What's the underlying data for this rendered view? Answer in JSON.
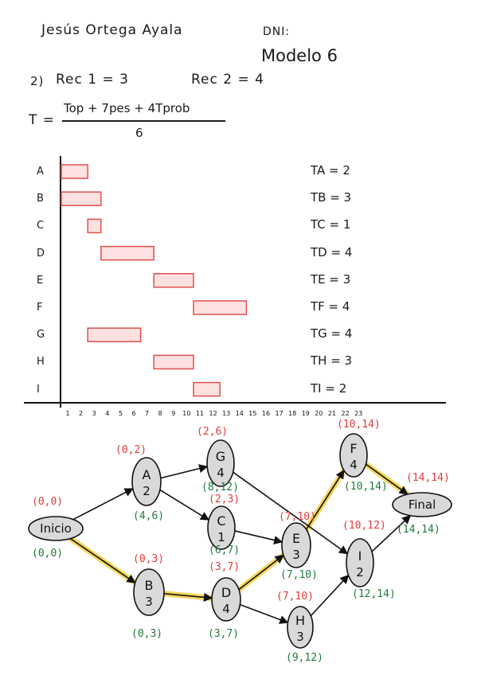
{
  "header": {
    "name": "Jesús Ortega Ayala",
    "dni_label": "DNI:",
    "modelo": "Modelo 6",
    "resources": {
      "label_number": "2)",
      "rec1": "Rec 1 = 3",
      "rec2": "Rec 2 = 4"
    }
  },
  "formula": {
    "lhs": "T =",
    "numerator": "Top + 7pes + 4Tprob",
    "denominator": "6"
  },
  "gantt": {
    "axis_labels": [
      "1",
      "2",
      "3",
      "4",
      "5",
      "6",
      "7",
      "8",
      "9",
      "10",
      "11",
      "12",
      "13",
      "14",
      "15",
      "16",
      "17",
      "18",
      "19",
      "20",
      "21",
      "22",
      "23"
    ],
    "tasks": [
      {
        "label": "A",
        "start": 0,
        "end": 2,
        "duration_text": "TA = 2"
      },
      {
        "label": "B",
        "start": 0,
        "end": 3,
        "duration_text": "TB = 3"
      },
      {
        "label": "C",
        "start": 2,
        "end": 3,
        "duration_text": "TC = 1"
      },
      {
        "label": "D",
        "start": 3,
        "end": 7,
        "duration_text": "TD = 4"
      },
      {
        "label": "E",
        "start": 7,
        "end": 10,
        "duration_text": "TE = 3"
      },
      {
        "label": "F",
        "start": 10,
        "end": 14,
        "duration_text": "TF = 4"
      },
      {
        "label": "G",
        "start": 2,
        "end": 6,
        "duration_text": "TG = 4"
      },
      {
        "label": "H",
        "start": 7,
        "end": 10,
        "duration_text": "TH = 3"
      },
      {
        "label": "I",
        "start": 10,
        "end": 12,
        "duration_text": "TI = 2"
      }
    ]
  },
  "network": {
    "nodes": [
      {
        "id": "inicio",
        "letter": "Inicio",
        "dur": "",
        "top": "(0,0)",
        "bottom": "(0,0)"
      },
      {
        "id": "A",
        "letter": "A",
        "dur": "2",
        "top": "(0,2)",
        "bottom": "(4,6)"
      },
      {
        "id": "B",
        "letter": "B",
        "dur": "3",
        "top": "(0,3)",
        "bottom": "(0,3)"
      },
      {
        "id": "G",
        "letter": "G",
        "dur": "4",
        "top": "(2,6)",
        "bottom": "(8,12)"
      },
      {
        "id": "C",
        "letter": "C",
        "dur": "1",
        "top": "(2,3)",
        "bottom": "(6,7)"
      },
      {
        "id": "D",
        "letter": "D",
        "dur": "4",
        "top": "(3,7)",
        "bottom": "(3,7)"
      },
      {
        "id": "E",
        "letter": "E",
        "dur": "3",
        "top": "(7,10)",
        "bottom": "(7,10)"
      },
      {
        "id": "H",
        "letter": "H",
        "dur": "3",
        "top": "(7,10)",
        "bottom": "(9,12)"
      },
      {
        "id": "F",
        "letter": "F",
        "dur": "4",
        "top": "(10,14)",
        "bottom": "(10,14)"
      },
      {
        "id": "I",
        "letter": "I",
        "dur": "2",
        "top": "(10,12)",
        "bottom": "(12,14)"
      },
      {
        "id": "final",
        "letter": "Final",
        "dur": "",
        "top": "(14,14)",
        "bottom": "(14,14)"
      }
    ],
    "colors": {
      "early": "#e03c3c",
      "late": "#1f7a3d",
      "critical": "#f4d03f",
      "bar_fill": "#fde0e0",
      "bar_stroke": "#e05050"
    }
  }
}
